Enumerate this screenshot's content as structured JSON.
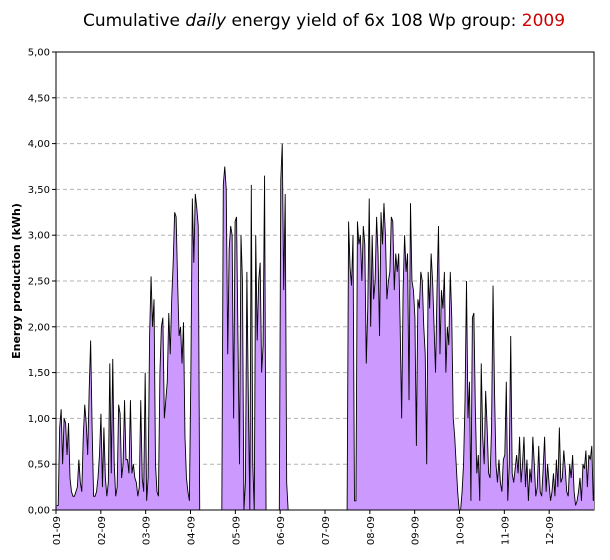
{
  "chart_data": {
    "type": "area",
    "title": {
      "part1": "Cumulative ",
      "italic": "daily",
      "part2": "  energy yield of 6x 108 Wp group: ",
      "year": "2009",
      "year_color": "#cc0000"
    },
    "xlabel": "",
    "ylabel": "Energy production (kWh)",
    "ylim": [
      0,
      5
    ],
    "y_ticks": [
      "0,00",
      "0,50",
      "1,00",
      "1,50",
      "2,00",
      "2,50",
      "3,00",
      "3,50",
      "4,00",
      "4,50",
      "5,00"
    ],
    "x_ticks": [
      "01-09",
      "02-09",
      "03-09",
      "04-09",
      "05-09",
      "06-09",
      "07-09",
      "08-09",
      "09-09",
      "10-09",
      "11-09",
      "12-09"
    ],
    "grid": "horizontal dashed",
    "fill_color": "#cc99ff",
    "line_color": "#000000",
    "series": [
      {
        "values": [
          0.05,
          0.05,
          0.9,
          1.1,
          0.5,
          1.0,
          0.95,
          0.6,
          0.95,
          0.35,
          0.2,
          0.15,
          0.15,
          0.2,
          0.25,
          0.55,
          0.3,
          0.2,
          0.8,
          1.15,
          0.95,
          0.6,
          1.3,
          1.85,
          0.9,
          0.15,
          0.15,
          0.2,
          0.35,
          0.6,
          1.05,
          0.25,
          0.9,
          0.35,
          0.15,
          0.3,
          1.6,
          0.4,
          1.65,
          0.5,
          0.15,
          0.25,
          1.15,
          1.05,
          0.35,
          0.5,
          1.2,
          0.55,
          0.55,
          0.4,
          1.2,
          0.4,
          0.5,
          0.35,
          0.3,
          0.15,
          0.25,
          1.2,
          0.35,
          0.2,
          1.5,
          0.1,
          0.35,
          1.9,
          2.55,
          2.0,
          2.3,
          0.5,
          0.2,
          0.15,
          1.5,
          2.0,
          2.1,
          1.0,
          1.2,
          1.4,
          2.15,
          1.7,
          2.3,
          2.7,
          3.25,
          3.2,
          2.5,
          1.9,
          2.0,
          1.6,
          2.05,
          0.8,
          0.35,
          0.2,
          0.1,
          1.5,
          3.4,
          2.7,
          3.45,
          3.3,
          3.1,
          0,
          0,
          0,
          0,
          0,
          0,
          0,
          0,
          0,
          0,
          0,
          0,
          0,
          0,
          0,
          0,
          3.55,
          3.75,
          3.5,
          1.7,
          2.85,
          3.1,
          3.0,
          1.0,
          3.15,
          3.2,
          1.8,
          0.5,
          3.0,
          2.5,
          0,
          0.3,
          2.6,
          1.2,
          0,
          3.55,
          0.5,
          0,
          3.0,
          1.85,
          2.5,
          2.7,
          1.5,
          1.8,
          3.65,
          0,
          0,
          0,
          0,
          0,
          0,
          0,
          0,
          0,
          0,
          3.6,
          4.0,
          2.4,
          3.45,
          0.3,
          0,
          0,
          0,
          0,
          0,
          0,
          0,
          0,
          0,
          0,
          0,
          0,
          0,
          0,
          0,
          0,
          0,
          0,
          0,
          0,
          0,
          0,
          0,
          0,
          0,
          0,
          0,
          0,
          0,
          0,
          0,
          0,
          0,
          0,
          0,
          0,
          0,
          0,
          0,
          0,
          0,
          3.15,
          2.65,
          2.45,
          3.0,
          0.1,
          0.1,
          3.15,
          2.9,
          3.0,
          2.5,
          3.1,
          2.9,
          1.6,
          2.2,
          3.4,
          2.0,
          3.0,
          2.3,
          2.5,
          3.2,
          2.8,
          1.9,
          3.25,
          2.9,
          3.35,
          3.0,
          2.3,
          2.5,
          2.6,
          3.2,
          3.15,
          2.4,
          2.8,
          2.6,
          2.8,
          2.0,
          1.0,
          2.4,
          3.0,
          2.6,
          2.8,
          1.2,
          3.35,
          2.5,
          2.4,
          2.1,
          0.7,
          2.3,
          2.2,
          2.6,
          2.5,
          2.0,
          1.7,
          0.5,
          2.6,
          2.2,
          2.8,
          2.5,
          2.0,
          1.5,
          2.4,
          3.1,
          1.7,
          2.4,
          2.2,
          2.6,
          1.5,
          2.0,
          1.8,
          2.6,
          2.1,
          1.0,
          0.8,
          0.5,
          0.2,
          0,
          0,
          0.2,
          0.5,
          1.2,
          2.5,
          1.0,
          1.4,
          0.1,
          2.1,
          2.15,
          1.1,
          0.4,
          0.6,
          0.1,
          1.6,
          0.8,
          0.5,
          1.3,
          0.9,
          0.4,
          0.35,
          0.9,
          2.45,
          1.3,
          0.5,
          0.3,
          0.55,
          0.3,
          0.2,
          0.55,
          0.6,
          1.4,
          0.1,
          0.5,
          1.9,
          0.4,
          0.3,
          0.45,
          0.6,
          0.4,
          0.8,
          0.3,
          0.5,
          0.8,
          0.25,
          0.55,
          0.1,
          0.45,
          0.3,
          0.8,
          0.5,
          0.15,
          0.25,
          0.7,
          0.2,
          0.15,
          0.45,
          0.8,
          0.2,
          0.5,
          0.3,
          0.1,
          0.2,
          0.4,
          0.15,
          0.55,
          0.25,
          0.9,
          0.3,
          0.35,
          0.65,
          0.45,
          0.2,
          0.15,
          0.5,
          0.35,
          0.6,
          0.2,
          0.05,
          0.1,
          0.2,
          0.35,
          0.1,
          0.5,
          0.45,
          0.65,
          0.25,
          0.6,
          0.55,
          0.7,
          0.1
        ]
      }
    ]
  }
}
